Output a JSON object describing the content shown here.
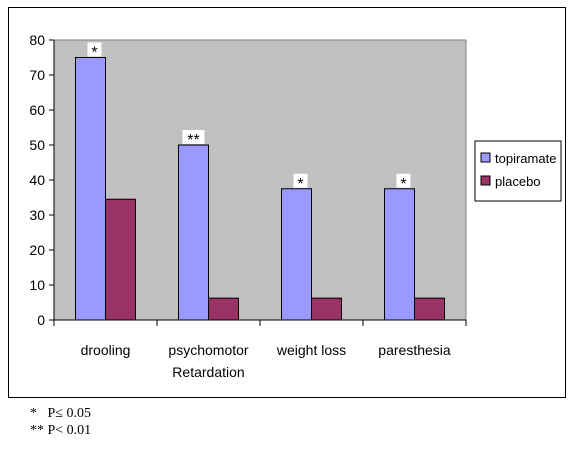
{
  "chart_data": {
    "type": "bar",
    "categories": [
      "drooling",
      "psychomotor Retardation",
      "weight loss",
      "paresthesia"
    ],
    "category_lines": [
      [
        "drooling"
      ],
      [
        "psychomotor",
        "Retardation"
      ],
      [
        "weight loss"
      ],
      [
        "paresthesia"
      ]
    ],
    "series": [
      {
        "name": "topiramate",
        "values": [
          75,
          50,
          37.5,
          37.5
        ],
        "color": "#9999FF"
      },
      {
        "name": "placebo",
        "values": [
          34.5,
          6.25,
          6.25,
          6.25
        ],
        "color": "#993366"
      }
    ],
    "annotations": [
      "*",
      "**",
      "*",
      "*"
    ],
    "ylim": [
      0,
      80
    ],
    "yticks": [
      0,
      10,
      20,
      30,
      40,
      50,
      60,
      70,
      80
    ],
    "plot_background": "#C0C0C0",
    "grid": false,
    "legend_position": "right"
  },
  "footnotes": [
    "*   P≤ 0.05",
    "** P< 0.01"
  ]
}
